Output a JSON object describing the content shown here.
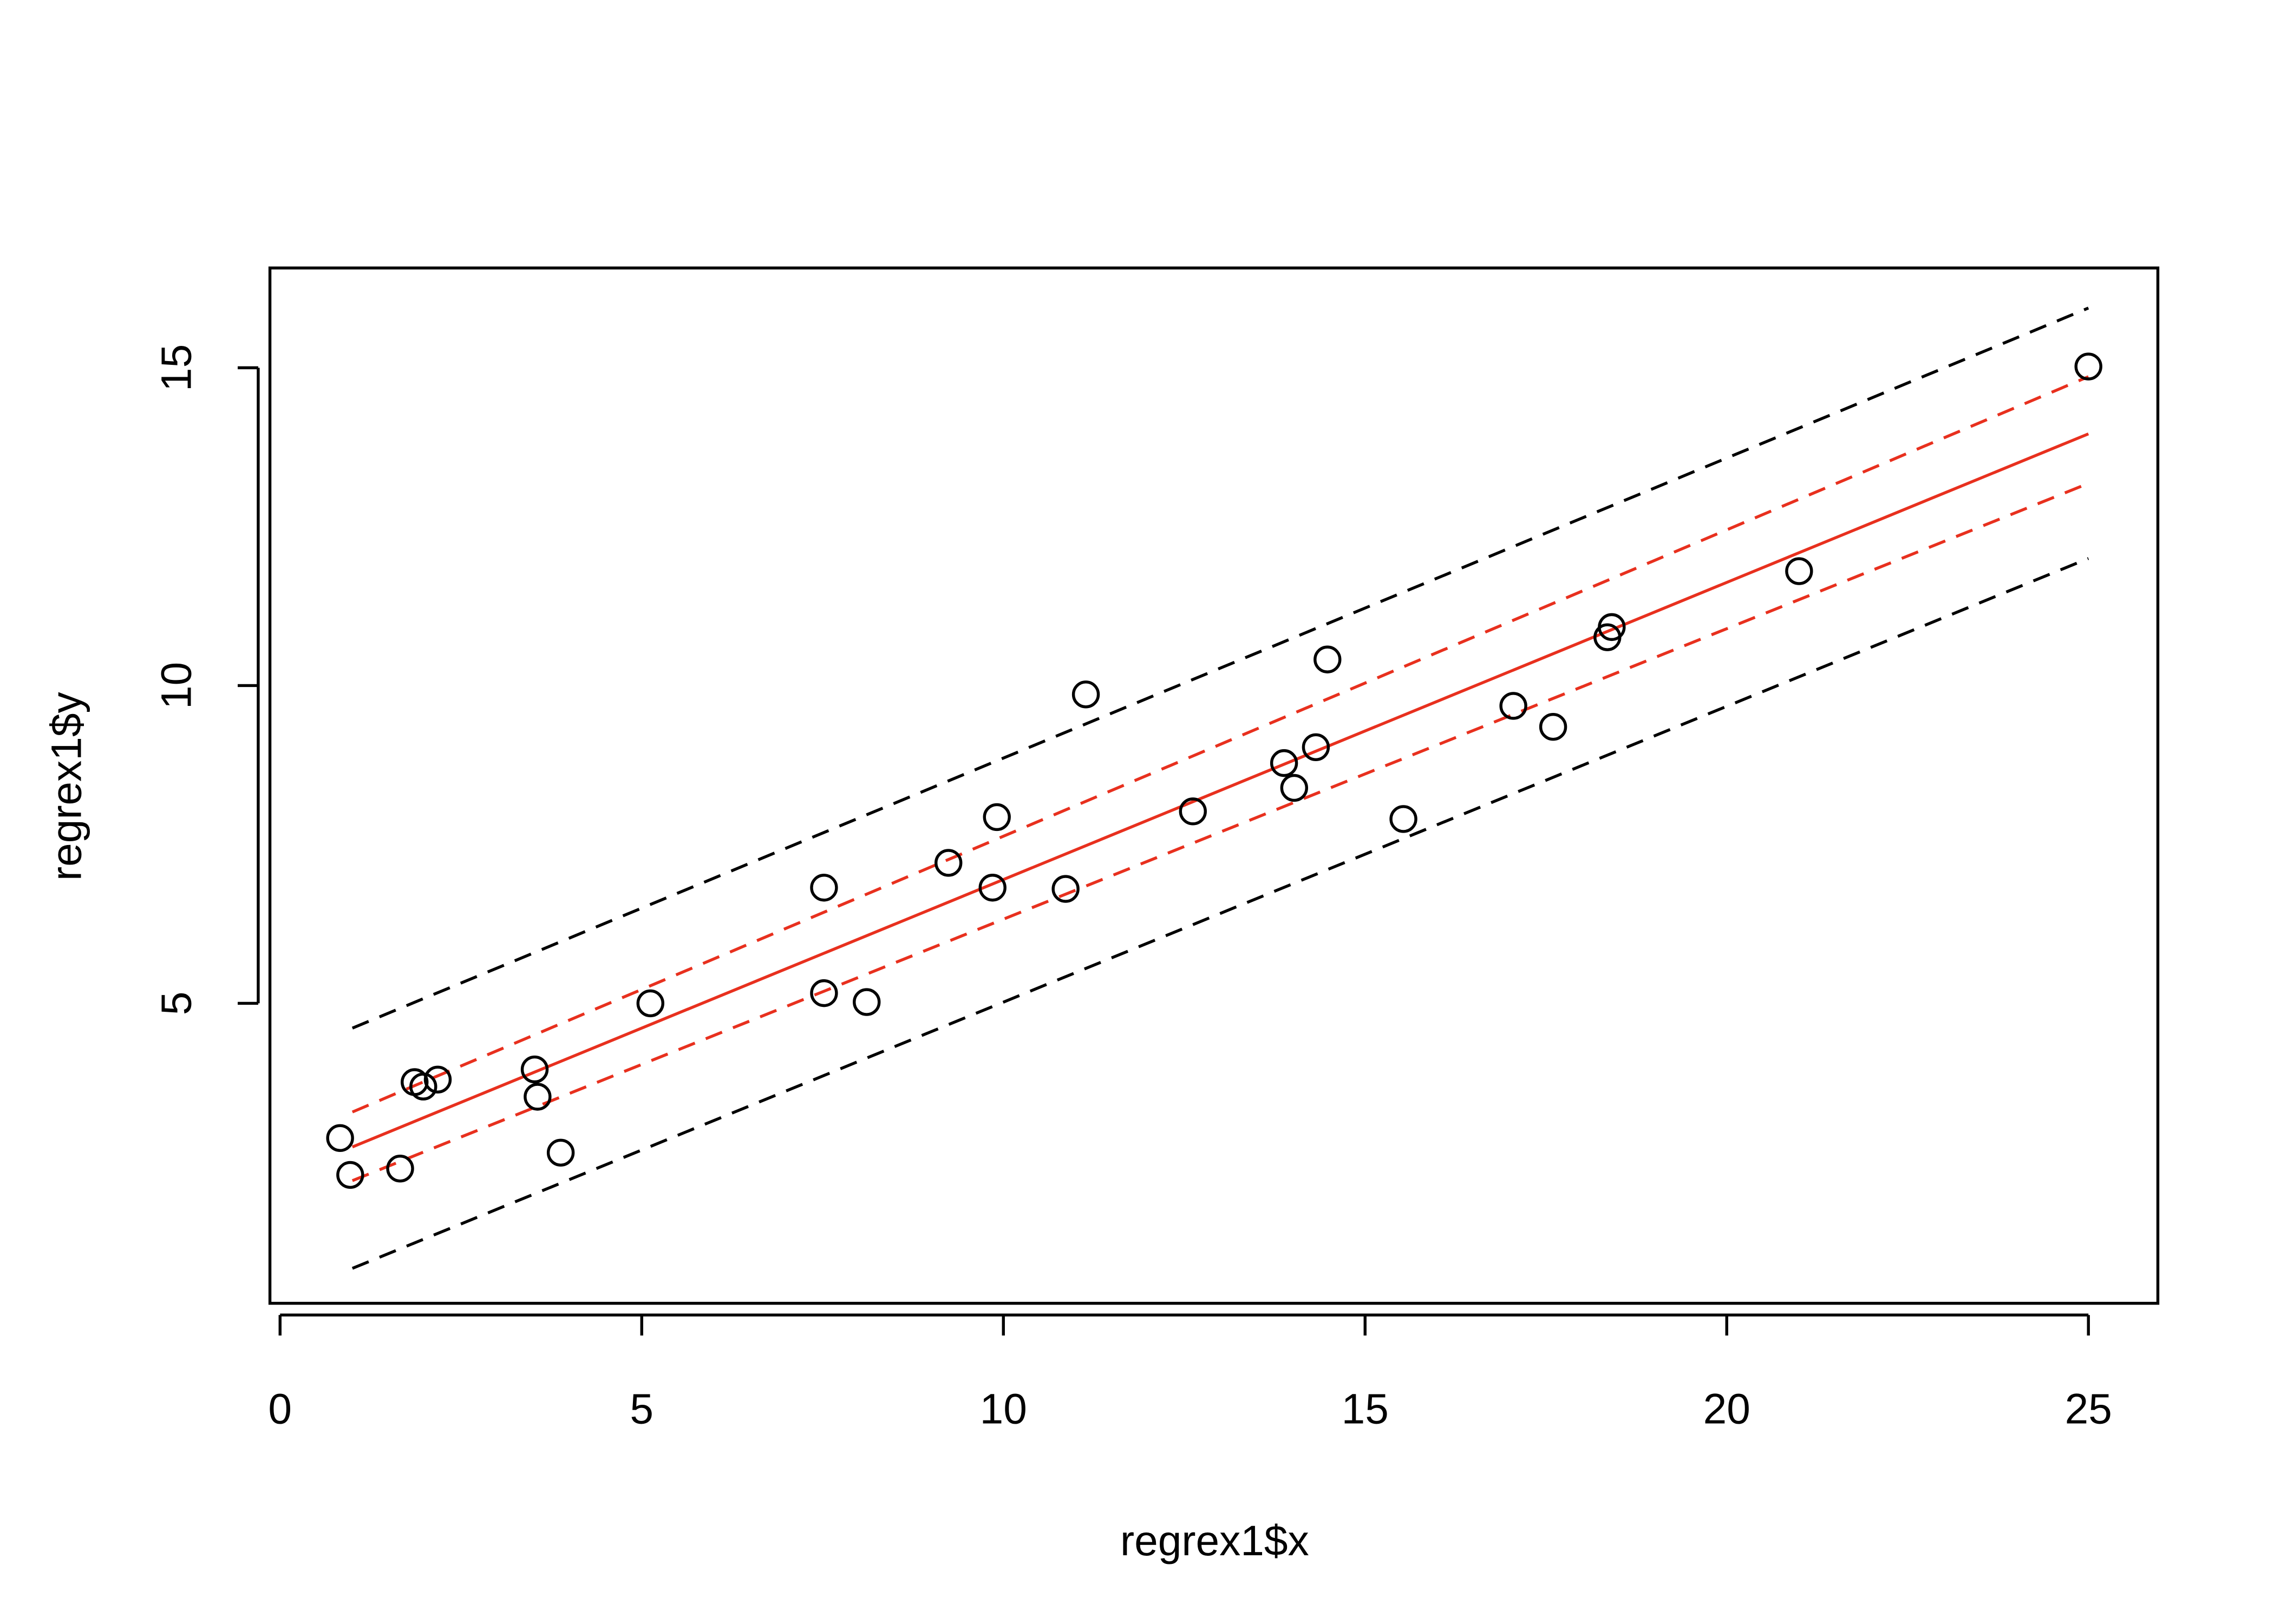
{
  "chart_data": {
    "type": "scatter",
    "x_label": "regrex1$x",
    "y_label": "regrex1$y",
    "xlim": [
      -0.14,
      25.96
    ],
    "ylim": [
      0.28,
      16.57
    ],
    "xticks": [
      0,
      5,
      10,
      15,
      20,
      25
    ],
    "yticks": [
      5,
      10,
      15
    ],
    "points": {
      "color": "#000000",
      "x": [
        0.83,
        0.97,
        1.66,
        1.86,
        1.98,
        2.18,
        3.52,
        3.56,
        3.88,
        5.12,
        7.52,
        7.52,
        8.11,
        9.24,
        9.85,
        9.91,
        10.86,
        11.14,
        12.62,
        13.88,
        14.02,
        14.32,
        14.48,
        15.53,
        17.05,
        17.6,
        18.35,
        18.41,
        21.0,
        25.0
      ],
      "y": [
        2.88,
        2.3,
        2.4,
        3.76,
        3.69,
        3.8,
        3.96,
        3.53,
        2.65,
        5.0,
        6.82,
        5.16,
        5.02,
        7.21,
        6.82,
        7.93,
        6.8,
        9.86,
        8.02,
        8.78,
        8.39,
        9.03,
        10.41,
        7.9,
        9.68,
        9.35,
        10.76,
        10.92,
        11.8,
        15.02
      ]
    },
    "lines": [
      {
        "color": "#e8301e",
        "dashed": false,
        "x": [
          1,
          25
        ],
        "values": [
          2.74,
          13.96
        ]
      },
      {
        "color": "#e8301e",
        "dashed": true,
        "x": [
          1,
          25
        ],
        "values": [
          3.29,
          14.86
        ]
      },
      {
        "color": "#e8301e",
        "dashed": true,
        "x": [
          1,
          25
        ],
        "values": [
          2.21,
          13.18
        ]
      },
      {
        "color": "#000000",
        "dashed": true,
        "x": [
          1,
          25
        ],
        "values": [
          4.61,
          15.94
        ]
      },
      {
        "color": "#000000",
        "dashed": true,
        "x": [
          1,
          25
        ],
        "values": [
          0.83,
          12.0
        ]
      }
    ]
  }
}
